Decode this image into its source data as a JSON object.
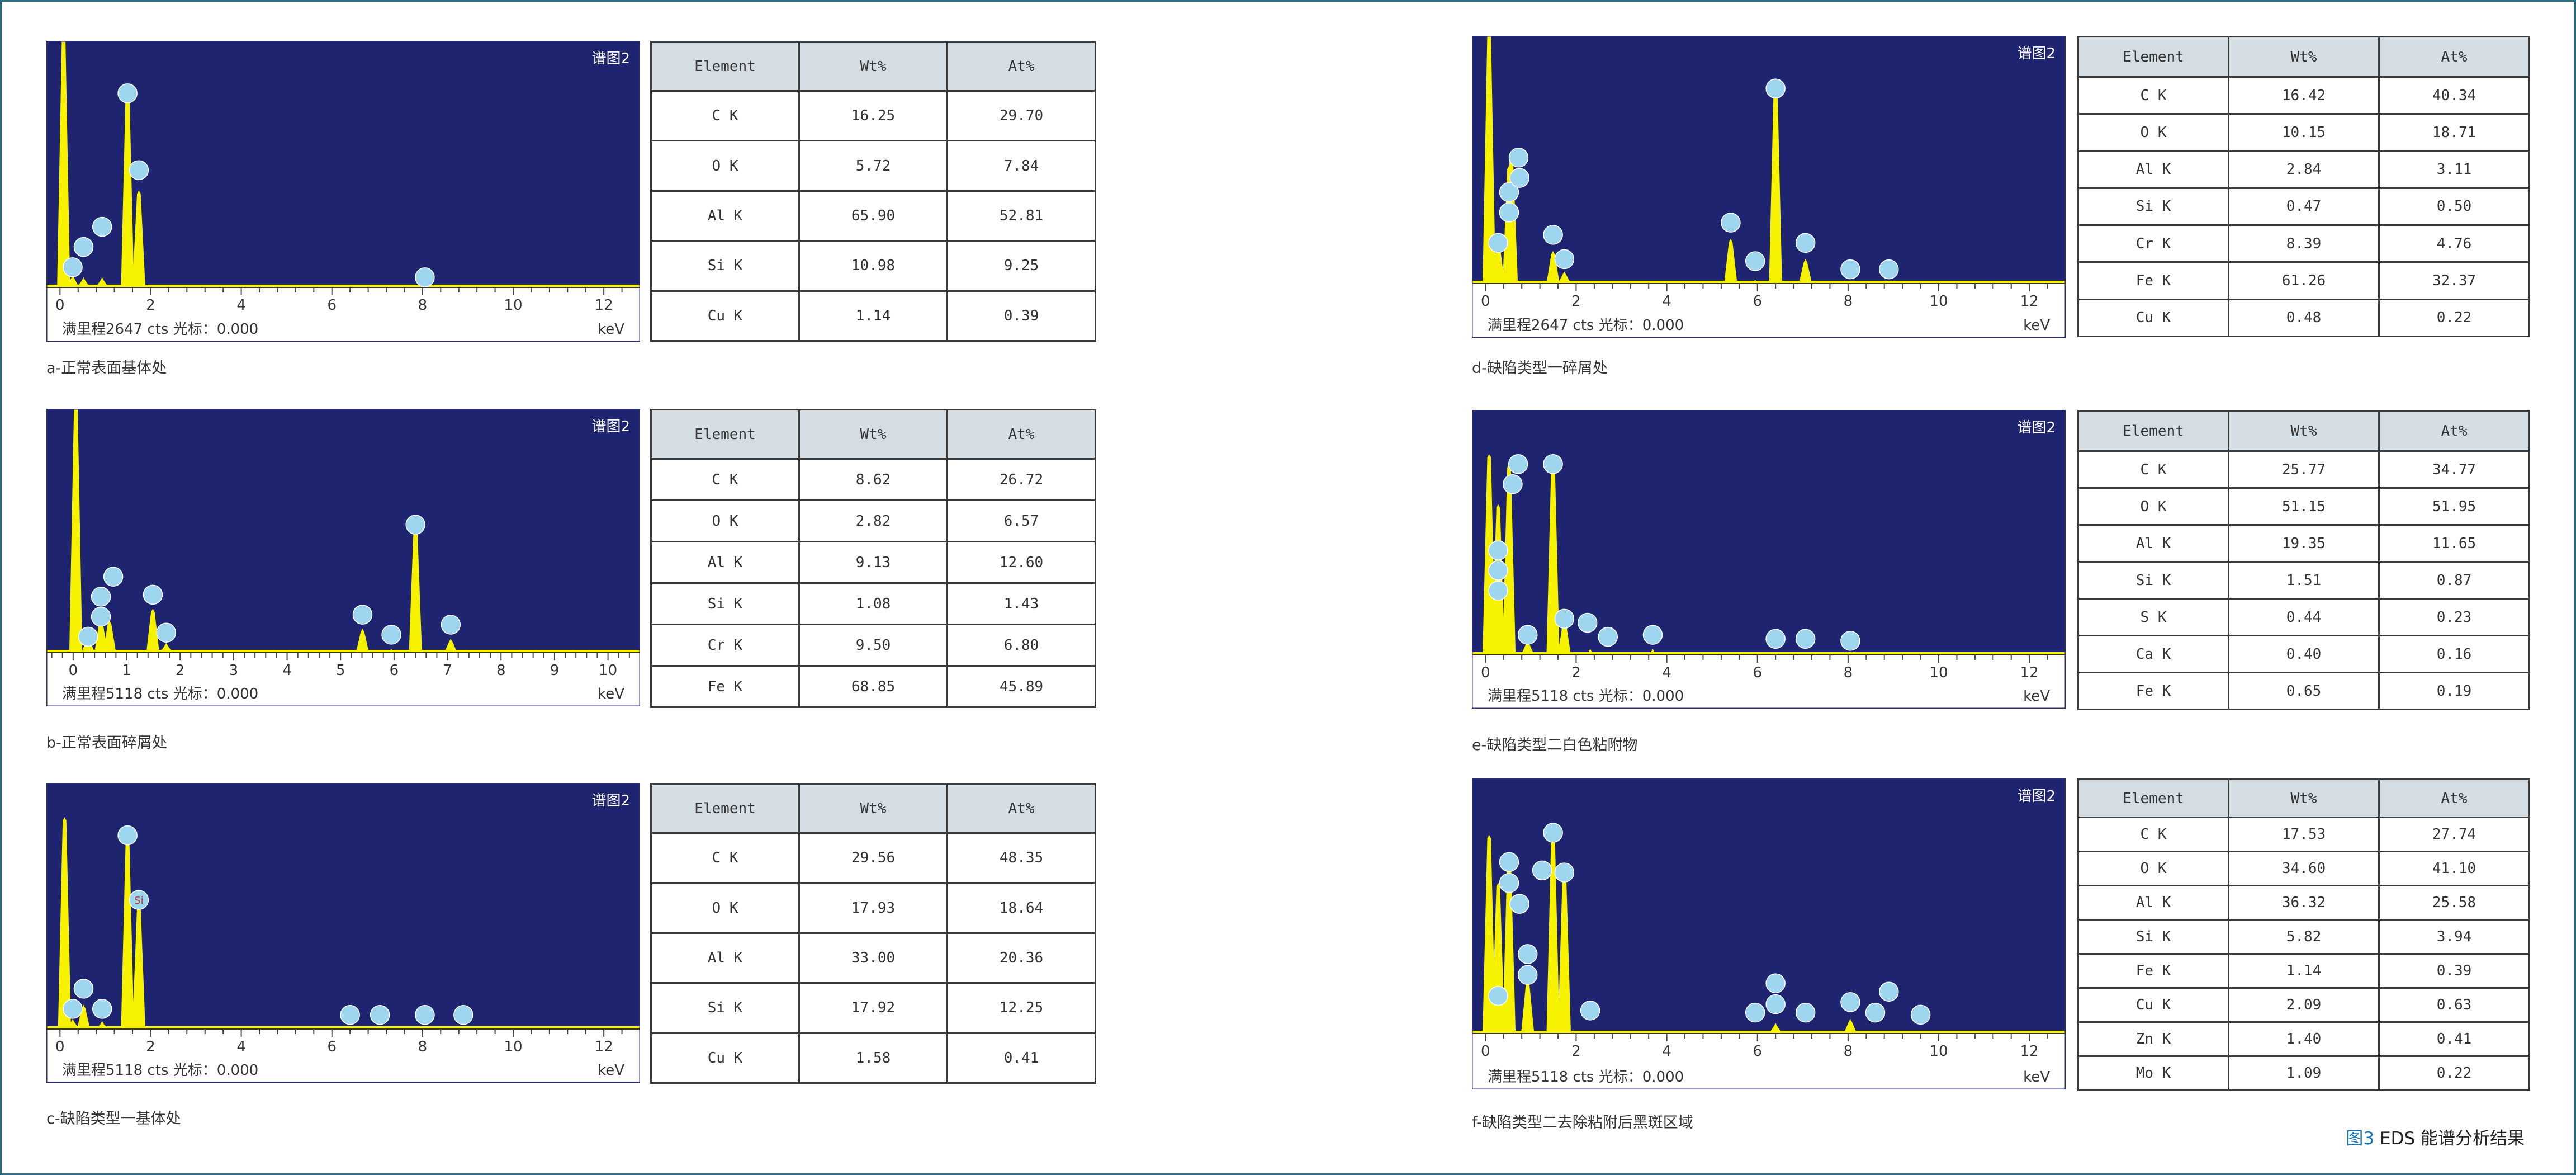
{
  "figure": {
    "number": "图3",
    "title": "EDS 能谱分析结果"
  },
  "table_header": {
    "element": "Element",
    "wt": "Wt%",
    "at": "At%"
  },
  "colors": {
    "plot_bg": "#1e2470",
    "peak": "#f7f200",
    "label_circle": "#9fd6ef",
    "frame": "#2c6e86"
  },
  "chart_data": [
    {
      "id": "a",
      "type": "area",
      "caption": "a-正常表面基体处",
      "spectrum_label": "谱图2",
      "footer": "满里程2647 cts  光标：0.000",
      "unit": "keV",
      "xlim": [
        -0.3,
        12.8
      ],
      "x_ticks": [
        0,
        2,
        4,
        6,
        8,
        10,
        12
      ],
      "y_fullscale": 1.0,
      "peaks": [
        {
          "x": 0.08,
          "h": 1.25
        },
        {
          "x": 0.28,
          "h": 0.06
        },
        {
          "x": 0.52,
          "h": 0.05
        },
        {
          "x": 0.93,
          "h": 0.05
        },
        {
          "x": 1.49,
          "h": 1.0
        },
        {
          "x": 1.74,
          "h": 0.48
        },
        {
          "x": 8.05,
          "h": 0.01
        }
      ],
      "labels": [
        {
          "x": 0.28,
          "h": 0.1
        },
        {
          "x": 0.52,
          "h": 0.2
        },
        {
          "x": 0.93,
          "h": 0.3
        },
        {
          "x": 1.49,
          "h": 0.96
        },
        {
          "x": 1.74,
          "h": 0.58
        },
        {
          "x": 8.05,
          "h": 0.05
        }
      ],
      "table": [
        {
          "el": "C K",
          "wt": "16.25",
          "at": "29.70"
        },
        {
          "el": "O K",
          "wt": "5.72",
          "at": "7.84"
        },
        {
          "el": "Al K",
          "wt": "65.90",
          "at": "52.81"
        },
        {
          "el": "Si K",
          "wt": "10.98",
          "at": "9.25"
        },
        {
          "el": "Cu K",
          "wt": "1.14",
          "at": "0.39"
        }
      ]
    },
    {
      "id": "b",
      "type": "area",
      "caption": "b-正常表面碎屑处",
      "spectrum_label": "谱图2",
      "footer": "满里程5118 cts  光标：0.000",
      "unit": "keV",
      "xlim": [
        -0.5,
        10.6
      ],
      "x_ticks": [
        0,
        1,
        2,
        3,
        4,
        5,
        6,
        7,
        8,
        9,
        10
      ],
      "y_fullscale": 1.0,
      "peaks": [
        {
          "x": 0.05,
          "h": 1.25
        },
        {
          "x": 0.28,
          "h": 0.08
        },
        {
          "x": 0.52,
          "h": 0.17
        },
        {
          "x": 0.68,
          "h": 0.16
        },
        {
          "x": 1.49,
          "h": 0.22
        },
        {
          "x": 1.74,
          "h": 0.05
        },
        {
          "x": 5.41,
          "h": 0.12
        },
        {
          "x": 5.95,
          "h": 0.02
        },
        {
          "x": 6.4,
          "h": 0.65
        },
        {
          "x": 7.06,
          "h": 0.07
        }
      ],
      "labels": [
        {
          "x": 0.28,
          "h": 0.08
        },
        {
          "x": 0.52,
          "h": 0.18
        },
        {
          "x": 0.52,
          "h": 0.28
        },
        {
          "x": 0.75,
          "h": 0.38
        },
        {
          "x": 1.49,
          "h": 0.29
        },
        {
          "x": 1.74,
          "h": 0.1
        },
        {
          "x": 5.41,
          "h": 0.19
        },
        {
          "x": 5.95,
          "h": 0.09
        },
        {
          "x": 6.4,
          "h": 0.64
        },
        {
          "x": 7.06,
          "h": 0.14
        }
      ],
      "table": [
        {
          "el": "C K",
          "wt": "8.62",
          "at": "26.72"
        },
        {
          "el": "O K",
          "wt": "2.82",
          "at": "6.57"
        },
        {
          "el": "Al K",
          "wt": "9.13",
          "at": "12.60"
        },
        {
          "el": "Si K",
          "wt": "1.08",
          "at": "1.43"
        },
        {
          "el": "Cr K",
          "wt": "9.50",
          "at": "6.80"
        },
        {
          "el": "Fe K",
          "wt": "68.85",
          "at": "45.89"
        }
      ]
    },
    {
      "id": "c",
      "type": "area",
      "caption": "c-缺陷类型一基体处",
      "spectrum_label": "谱图2",
      "footer": "满里程5118 cts  光标：0.000",
      "unit": "keV",
      "xlim": [
        -0.3,
        12.8
      ],
      "x_ticks": [
        0,
        2,
        4,
        6,
        8,
        10,
        12
      ],
      "y_fullscale": 1.0,
      "peaks": [
        {
          "x": 0.1,
          "h": 1.05
        },
        {
          "x": 0.28,
          "h": 0.05
        },
        {
          "x": 0.52,
          "h": 0.12
        },
        {
          "x": 0.93,
          "h": 0.04
        },
        {
          "x": 1.49,
          "h": 0.96
        },
        {
          "x": 1.74,
          "h": 0.62
        },
        {
          "x": 8.05,
          "h": 0.01
        },
        {
          "x": 8.9,
          "h": 0.01
        }
      ],
      "labels": [
        {
          "x": 0.28,
          "h": 0.1
        },
        {
          "x": 0.52,
          "h": 0.2
        },
        {
          "x": 0.93,
          "h": 0.1
        },
        {
          "x": 1.49,
          "h": 0.96
        },
        {
          "x": 1.74,
          "h": 0.64,
          "text": "Si"
        },
        {
          "x": 6.4,
          "h": 0.07
        },
        {
          "x": 7.06,
          "h": 0.07
        },
        {
          "x": 8.05,
          "h": 0.07
        },
        {
          "x": 8.9,
          "h": 0.07
        }
      ],
      "table": [
        {
          "el": "C K",
          "wt": "29.56",
          "at": "48.35"
        },
        {
          "el": "O K",
          "wt": "17.93",
          "at": "18.64"
        },
        {
          "el": "Al K",
          "wt": "33.00",
          "at": "20.36"
        },
        {
          "el": "Si K",
          "wt": "17.92",
          "at": "12.25"
        },
        {
          "el": "Cu K",
          "wt": "1.58",
          "at": "0.41"
        }
      ]
    },
    {
      "id": "d",
      "type": "area",
      "caption": "d-缺陷类型一碎屑处",
      "spectrum_label": "谱图2",
      "footer": "满里程2647 cts  光标：0.000",
      "unit": "keV",
      "xlim": [
        -0.3,
        12.8
      ],
      "x_ticks": [
        0,
        2,
        4,
        6,
        8,
        10,
        12
      ],
      "y_fullscale": 1.0,
      "peaks": [
        {
          "x": 0.08,
          "h": 1.25
        },
        {
          "x": 0.28,
          "h": 0.2
        },
        {
          "x": 0.52,
          "h": 0.58
        },
        {
          "x": 0.57,
          "h": 0.62
        },
        {
          "x": 1.49,
          "h": 0.16
        },
        {
          "x": 1.74,
          "h": 0.06
        },
        {
          "x": 5.41,
          "h": 0.22
        },
        {
          "x": 5.95,
          "h": 0.02
        },
        {
          "x": 6.4,
          "h": 1.0
        },
        {
          "x": 7.06,
          "h": 0.12
        }
      ],
      "labels": [
        {
          "x": 0.28,
          "h": 0.2
        },
        {
          "x": 0.52,
          "h": 0.35
        },
        {
          "x": 0.52,
          "h": 0.45
        },
        {
          "x": 0.75,
          "h": 0.52
        },
        {
          "x": 0.73,
          "h": 0.62
        },
        {
          "x": 1.49,
          "h": 0.24
        },
        {
          "x": 1.74,
          "h": 0.12
        },
        {
          "x": 5.41,
          "h": 0.3
        },
        {
          "x": 5.95,
          "h": 0.11
        },
        {
          "x": 6.4,
          "h": 0.96
        },
        {
          "x": 7.06,
          "h": 0.2
        },
        {
          "x": 8.05,
          "h": 0.07
        },
        {
          "x": 8.9,
          "h": 0.07
        }
      ],
      "table": [
        {
          "el": "C K",
          "wt": "16.42",
          "at": "40.34"
        },
        {
          "el": "O K",
          "wt": "10.15",
          "at": "18.71"
        },
        {
          "el": "Al K",
          "wt": "2.84",
          "at": "3.11"
        },
        {
          "el": "Si K",
          "wt": "0.47",
          "at": "0.50"
        },
        {
          "el": "Cr K",
          "wt": "8.39",
          "at": "4.76"
        },
        {
          "el": "Fe K",
          "wt": "61.26",
          "at": "32.37"
        },
        {
          "el": "Cu K",
          "wt": "0.48",
          "at": "0.22"
        }
      ]
    },
    {
      "id": "e",
      "type": "area",
      "caption": "e-缺陷类型二白色粘附物",
      "spectrum_label": "谱图2",
      "footer": "满里程5118 cts  光标：0.000",
      "unit": "keV",
      "xlim": [
        -0.3,
        12.8
      ],
      "x_ticks": [
        0,
        2,
        4,
        6,
        8,
        10,
        12
      ],
      "y_fullscale": 1.0,
      "peaks": [
        {
          "x": 0.08,
          "h": 1.0
        },
        {
          "x": 0.28,
          "h": 0.75
        },
        {
          "x": 0.52,
          "h": 0.95
        },
        {
          "x": 0.93,
          "h": 0.07
        },
        {
          "x": 1.49,
          "h": 0.97
        },
        {
          "x": 1.74,
          "h": 0.17
        },
        {
          "x": 2.31,
          "h": 0.03
        },
        {
          "x": 3.69,
          "h": 0.03
        }
      ],
      "labels": [
        {
          "x": 0.28,
          "h": 0.32
        },
        {
          "x": 0.28,
          "h": 0.42
        },
        {
          "x": 0.28,
          "h": 0.52
        },
        {
          "x": 0.6,
          "h": 0.85
        },
        {
          "x": 0.72,
          "h": 0.95
        },
        {
          "x": 0.93,
          "h": 0.1
        },
        {
          "x": 1.49,
          "h": 0.95
        },
        {
          "x": 1.74,
          "h": 0.18
        },
        {
          "x": 2.25,
          "h": 0.16
        },
        {
          "x": 2.7,
          "h": 0.09
        },
        {
          "x": 3.69,
          "h": 0.1
        },
        {
          "x": 6.4,
          "h": 0.08
        },
        {
          "x": 7.06,
          "h": 0.08
        },
        {
          "x": 8.05,
          "h": 0.07
        }
      ],
      "table": [
        {
          "el": "C K",
          "wt": "25.77",
          "at": "34.77"
        },
        {
          "el": "O K",
          "wt": "51.15",
          "at": "51.95"
        },
        {
          "el": "Al K",
          "wt": "19.35",
          "at": "11.65"
        },
        {
          "el": "Si K",
          "wt": "1.51",
          "at": "0.87"
        },
        {
          "el": "S K",
          "wt": "0.44",
          "at": "0.23"
        },
        {
          "el": "Ca K",
          "wt": "0.40",
          "at": "0.16"
        },
        {
          "el": "Fe K",
          "wt": "0.65",
          "at": "0.19"
        }
      ]
    },
    {
      "id": "f",
      "type": "area",
      "caption": "f-缺陷类型二去除粘附后黑斑区域",
      "spectrum_label": "谱图2",
      "footer": "满里程5118 cts  光标：0.000",
      "unit": "keV",
      "xlim": [
        -0.3,
        12.8
      ],
      "x_ticks": [
        0,
        2,
        4,
        6,
        8,
        10,
        12
      ],
      "y_fullscale": 1.0,
      "peaks": [
        {
          "x": 0.08,
          "h": 0.95
        },
        {
          "x": 0.28,
          "h": 0.72
        },
        {
          "x": 0.52,
          "h": 0.85
        },
        {
          "x": 0.93,
          "h": 0.25
        },
        {
          "x": 1.49,
          "h": 0.97
        },
        {
          "x": 1.74,
          "h": 0.78
        },
        {
          "x": 6.4,
          "h": 0.05
        },
        {
          "x": 8.05,
          "h": 0.07
        }
      ],
      "labels": [
        {
          "x": 0.28,
          "h": 0.18
        },
        {
          "x": 0.52,
          "h": 0.72
        },
        {
          "x": 0.52,
          "h": 0.82
        },
        {
          "x": 0.75,
          "h": 0.62
        },
        {
          "x": 0.93,
          "h": 0.28
        },
        {
          "x": 0.93,
          "h": 0.38
        },
        {
          "x": 1.25,
          "h": 0.78
        },
        {
          "x": 1.49,
          "h": 0.96
        },
        {
          "x": 1.74,
          "h": 0.77
        },
        {
          "x": 2.31,
          "h": 0.11
        },
        {
          "x": 5.95,
          "h": 0.1
        },
        {
          "x": 6.4,
          "h": 0.14
        },
        {
          "x": 6.4,
          "h": 0.24
        },
        {
          "x": 7.06,
          "h": 0.1
        },
        {
          "x": 8.05,
          "h": 0.15
        },
        {
          "x": 8.6,
          "h": 0.1
        },
        {
          "x": 8.9,
          "h": 0.2
        },
        {
          "x": 9.6,
          "h": 0.09
        }
      ],
      "table": [
        {
          "el": "C K",
          "wt": "17.53",
          "at": "27.74"
        },
        {
          "el": "O K",
          "wt": "34.60",
          "at": "41.10"
        },
        {
          "el": "Al K",
          "wt": "36.32",
          "at": "25.58"
        },
        {
          "el": "Si K",
          "wt": "5.82",
          "at": "3.94"
        },
        {
          "el": "Fe K",
          "wt": "1.14",
          "at": "0.39"
        },
        {
          "el": "Cu K",
          "wt": "2.09",
          "at": "0.63"
        },
        {
          "el": "Zn K",
          "wt": "1.40",
          "at": "0.41"
        },
        {
          "el": "Mo K",
          "wt": "1.09",
          "at": "0.22"
        }
      ]
    }
  ]
}
